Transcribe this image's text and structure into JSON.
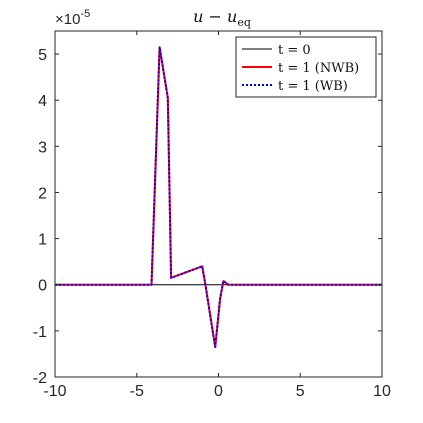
{
  "chart_data": {
    "type": "line",
    "title": "u − u_eq",
    "title_main": "u − u",
    "title_sub": "eq",
    "xlabel": "",
    "ylabel": "",
    "xlim": [
      -10,
      10
    ],
    "ylim": [
      -2,
      5.5
    ],
    "y_exponent_label": "×10",
    "y_exponent_power": "-5",
    "x_ticks": [
      -10,
      -5,
      0,
      5,
      10
    ],
    "x_tick_labels": [
      "-10",
      "-5",
      "0",
      "5",
      "10"
    ],
    "y_ticks": [
      -2,
      -1,
      0,
      1,
      2,
      3,
      4,
      5
    ],
    "y_tick_labels": [
      "-2",
      "-1",
      "0",
      "1",
      "2",
      "3",
      "4",
      "5"
    ],
    "grid": false,
    "legend_position": "top-right",
    "series": [
      {
        "name": "t = 0",
        "color": "#000000",
        "style": "solid",
        "x": [
          -10,
          10
        ],
        "y": [
          0,
          0
        ]
      },
      {
        "name": "t = 1 (NWB)",
        "color": "#ff0000",
        "style": "solid",
        "x": [
          -10,
          -4.1,
          -3.6,
          -3.1,
          -2.9,
          -1.0,
          -0.8,
          -0.2,
          0.1,
          0.3,
          0.6,
          10
        ],
        "y": [
          0,
          0,
          5.15,
          4.05,
          0.15,
          0.4,
          0.0,
          -1.35,
          -0.3,
          0.08,
          0,
          0
        ]
      },
      {
        "name": "t = 1 (WB)",
        "color": "#0000ff",
        "style": "dotted",
        "x": [
          -10,
          -4.1,
          -3.6,
          -3.1,
          -2.9,
          -1.0,
          -0.8,
          -0.2,
          0.1,
          0.3,
          0.6,
          10
        ],
        "y": [
          0,
          0,
          5.15,
          4.05,
          0.15,
          0.4,
          0.0,
          -1.35,
          -0.3,
          0.08,
          0,
          0
        ]
      }
    ]
  }
}
